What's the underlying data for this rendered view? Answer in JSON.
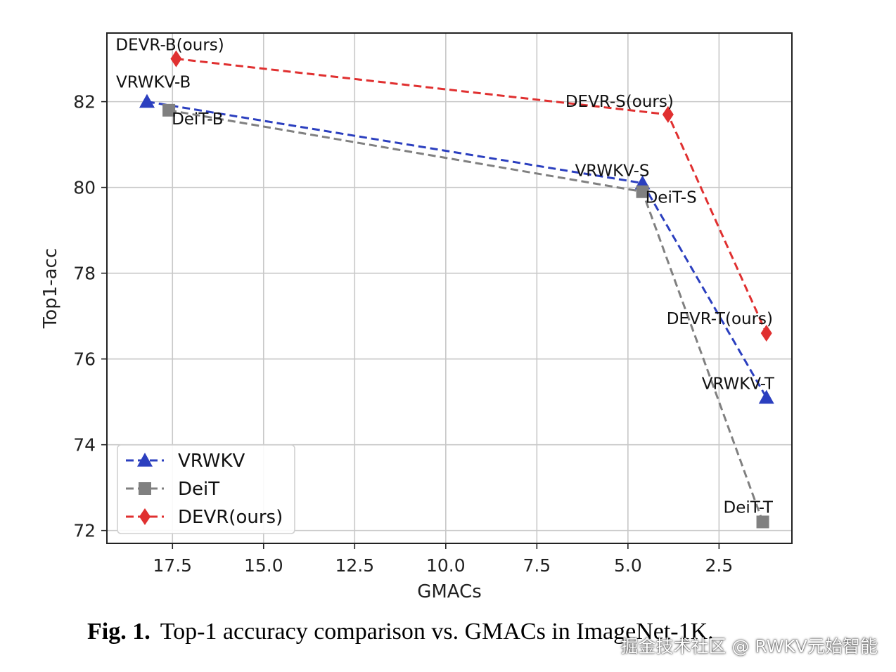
{
  "chart_data": {
    "type": "line",
    "xlabel": "GMACs",
    "ylabel": "Top1-acc",
    "xlim": [
      19.3,
      0.5
    ],
    "ylim": [
      71.7,
      83.6
    ],
    "x_inverted": true,
    "xticks": [
      17.5,
      15.0,
      12.5,
      10.0,
      7.5,
      5.0,
      2.5
    ],
    "xtick_labels": [
      "17.5",
      "15.0",
      "12.5",
      "10.0",
      "7.5",
      "5.0",
      "2.5"
    ],
    "yticks": [
      72,
      74,
      76,
      78,
      80,
      82
    ],
    "ytick_labels": [
      "72",
      "74",
      "76",
      "78",
      "80",
      "82"
    ],
    "grid": true,
    "legend_position": "lower-left",
    "series": [
      {
        "name": "VRWKV",
        "color": "#2b3fbf",
        "marker": "triangle",
        "points": [
          {
            "x": 18.2,
            "y": 82.0,
            "label": "VRWKV-B"
          },
          {
            "x": 4.6,
            "y": 80.1,
            "label": "VRWKV-S"
          },
          {
            "x": 1.2,
            "y": 75.1,
            "label": "VRWKV-T"
          }
        ]
      },
      {
        "name": "DeiT",
        "color": "#808080",
        "marker": "square",
        "points": [
          {
            "x": 17.6,
            "y": 81.8,
            "label": "DeiT-B"
          },
          {
            "x": 4.6,
            "y": 79.9,
            "label": "DeiT-S"
          },
          {
            "x": 1.3,
            "y": 72.2,
            "label": "DeiT-T"
          }
        ]
      },
      {
        "name": "DEVR(ours)",
        "color": "#e03030",
        "marker": "diamond",
        "points": [
          {
            "x": 17.4,
            "y": 83.0,
            "label": "DEVR-B(ours)"
          },
          {
            "x": 3.9,
            "y": 81.7,
            "label": "DEVR-S(ours)"
          },
          {
            "x": 1.2,
            "y": 76.6,
            "label": "DEVR-T(ours)"
          }
        ]
      }
    ]
  },
  "caption": {
    "fig_label": "Fig. 1.",
    "text": "Top-1 accuracy comparison vs. GMACs in ImageNet-1K."
  },
  "watermark": "掘金技术社区 @ RWKV元始智能"
}
